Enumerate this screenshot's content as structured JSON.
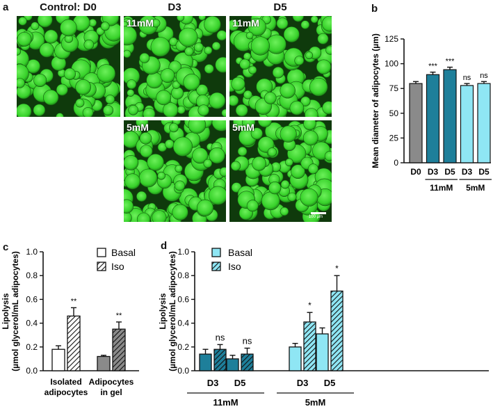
{
  "panel_labels": {
    "a": "a",
    "b": "b",
    "c": "c",
    "d": "d"
  },
  "panel_a": {
    "col_titles": [
      "Control: D0",
      "D3",
      "D5"
    ],
    "image_labels": {
      "d3_top": "11mM",
      "d5_top": "11mM",
      "d3_bottom": "5mM",
      "d5_bottom": "5mM"
    },
    "scale_bar_label": "100 µm"
  },
  "colors": {
    "gray": "#8a8a8a",
    "dark_teal": "#1e7f9a",
    "light_cyan": "#8fe6f4",
    "white": "#ffffff",
    "micro_green": "#37d12a"
  },
  "chart_data": [
    {
      "id": "b",
      "type": "bar",
      "ylabel": "Mean diameter of adipocytes (µm)",
      "ylim": [
        0,
        125
      ],
      "yticks": [
        0,
        25,
        50,
        75,
        100,
        125
      ],
      "categories": [
        "D0",
        "D3",
        "D5",
        "D3",
        "D5"
      ],
      "values": [
        80,
        89,
        94,
        78,
        80
      ],
      "errors": [
        2,
        2.5,
        2.5,
        2,
        2
      ],
      "bar_colors": [
        "gray",
        "dark_teal",
        "dark_teal",
        "light_cyan",
        "light_cyan"
      ],
      "annotations": [
        "",
        "***",
        "***",
        "ns",
        "ns"
      ],
      "groups": [
        {
          "label": "11mM",
          "from": 1,
          "to": 2
        },
        {
          "label": "5mM",
          "from": 3,
          "to": 4
        }
      ]
    },
    {
      "id": "c",
      "type": "bar",
      "ylabel_line1": "Lipolysis",
      "ylabel_line2": "(µmol glycerol/mL adipocytes)",
      "ylim": [
        0,
        1.0
      ],
      "yticks": [
        "0.0",
        "0.2",
        "0.4",
        "0.6",
        "0.8",
        "1.0"
      ],
      "categories": [
        [
          "Isolated",
          "adipocytes"
        ],
        [
          "Adipocytes",
          "in gel"
        ]
      ],
      "legend": [
        "Basal",
        "Iso"
      ],
      "series": [
        {
          "name": "Basal",
          "values": [
            0.18,
            0.12
          ],
          "errors": [
            0.03,
            0.01
          ]
        },
        {
          "name": "Iso",
          "values": [
            0.46,
            0.35
          ],
          "errors": [
            0.07,
            0.06
          ]
        }
      ],
      "annotations": [
        "**",
        "**"
      ]
    },
    {
      "id": "d",
      "type": "bar",
      "ylabel_line1": "Lipolysis",
      "ylabel_line2": "(µmol glycerol/mL adipocytes)",
      "ylim": [
        0,
        1.0
      ],
      "yticks": [
        "0.0",
        "0.2",
        "0.4",
        "0.6",
        "0.8",
        "1.0"
      ],
      "categories": [
        "D3",
        "D5",
        "D3",
        "D5"
      ],
      "legend": [
        "Basal",
        "Iso"
      ],
      "series": [
        {
          "name": "Basal",
          "values": [
            0.14,
            0.1,
            0.2,
            0.31
          ],
          "errors": [
            0.04,
            0.03,
            0.03,
            0.05
          ]
        },
        {
          "name": "Iso",
          "values": [
            0.18,
            0.14,
            0.41,
            0.67
          ],
          "errors": [
            0.04,
            0.05,
            0.08,
            0.13
          ]
        }
      ],
      "annotations": [
        "ns",
        "ns",
        "*",
        "*"
      ],
      "groups": [
        {
          "label": "11mM",
          "from": 0,
          "to": 1
        },
        {
          "label": "5mM",
          "from": 2,
          "to": 3
        }
      ]
    }
  ]
}
